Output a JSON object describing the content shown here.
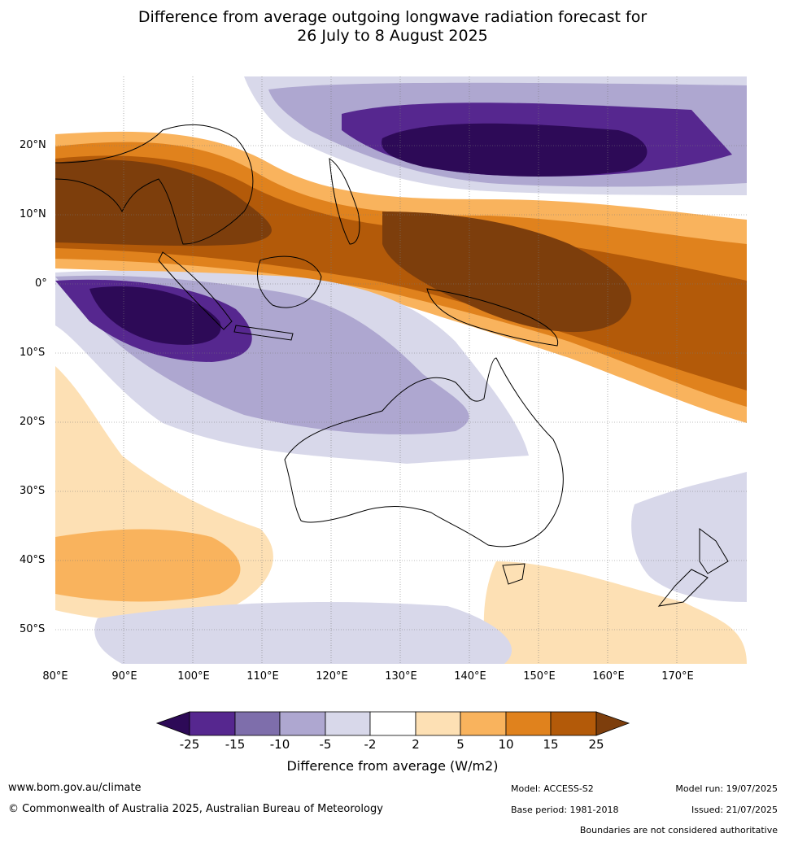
{
  "title": {
    "line1": "Difference from average outgoing longwave radiation forecast for",
    "line2": "26 July to 8 August 2025"
  },
  "map": {
    "lon_ticks": [
      "80°E",
      "90°E",
      "100°E",
      "110°E",
      "120°E",
      "130°E",
      "140°E",
      "150°E",
      "160°E",
      "170°E"
    ],
    "lat_ticks": [
      "20°N",
      "10°N",
      "0°",
      "10°S",
      "20°S",
      "30°S",
      "40°S",
      "50°S"
    ],
    "extent": {
      "lon": [
        80,
        180
      ],
      "lat": [
        -55,
        30
      ]
    }
  },
  "colorbar": {
    "ticks": [
      "-25",
      "-15",
      "-10",
      "-5",
      "-2",
      "2",
      "5",
      "10",
      "15",
      "25"
    ],
    "colors": [
      "#2d0a57",
      "#56278f",
      "#7e6eab",
      "#aea7d0",
      "#d8d8ea",
      "#ffffff",
      "#fde0b4",
      "#f9b35d",
      "#e0821d",
      "#b35a09",
      "#7d3e0c"
    ],
    "label": "Difference from average (W/m2)"
  },
  "footer": {
    "website": "www.bom.gov.au/climate",
    "copyright": "© Commonwealth of Australia 2025, Australian Bureau of Meteorology",
    "model": "Model: ACCESS-S2",
    "base_period": "Base period: 1981-2018",
    "model_run": "Model run: 19/07/2025",
    "issued": "Issued: 21/07/2025",
    "disclaimer": "Boundaries are not considered authoritative"
  }
}
